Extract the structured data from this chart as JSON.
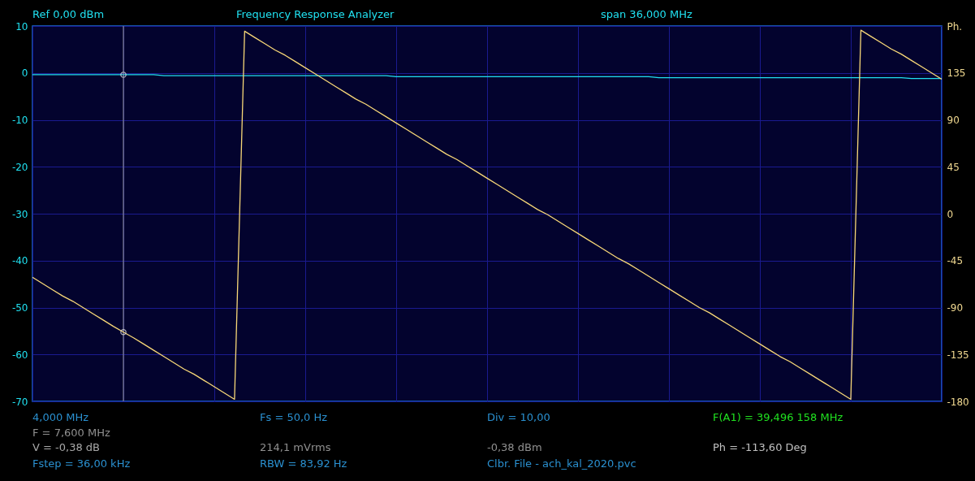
{
  "chart_data": {
    "type": "line",
    "title": "Frequency Response Analyzer",
    "categories": [
      null,
      null,
      null,
      null,
      null,
      null,
      null,
      null,
      null,
      null,
      null,
      null,
      null,
      null,
      null,
      null,
      null,
      null,
      null,
      null,
      null,
      null,
      null,
      null,
      null,
      null,
      null,
      null,
      null,
      null,
      null,
      null,
      null,
      null,
      null,
      null,
      null,
      null,
      null,
      null,
      null,
      null,
      null,
      null,
      null,
      null,
      null,
      null,
      null,
      null,
      null,
      null,
      null,
      null,
      null,
      null,
      null,
      null,
      null,
      null,
      null,
      null,
      null,
      null,
      null,
      null,
      null,
      null,
      null,
      null,
      null,
      null,
      null,
      null,
      null,
      null,
      null,
      null,
      null,
      null,
      null,
      null,
      null,
      null,
      null,
      null,
      null,
      null,
      null,
      null,
      null
    ],
    "ylim": [
      -70,
      10
    ],
    "yticks": [
      -70,
      -60,
      -50,
      -40,
      -30,
      -20,
      -10,
      0,
      10
    ],
    "y2lim": [
      -180,
      180
    ],
    "y2ticks": [
      -180,
      -135,
      -90,
      -45,
      0,
      45,
      90,
      135,
      {
        "value": 180,
        "label": "Ph."
      }
    ],
    "grid": true,
    "line_style": "solid",
    "series": [
      {
        "color": "#20e0f0",
        "values": [
          -0.38,
          -0.38,
          -0.38,
          -0.38,
          -0.38,
          -0.38,
          -0.38,
          -0.38,
          -0.38,
          -0.38,
          -0.38,
          -0.38,
          -0.38,
          -0.6,
          -0.6,
          -0.6,
          -0.6,
          -0.6,
          -0.6,
          -0.6,
          -0.6,
          -0.6,
          -0.6,
          -0.6,
          -0.6,
          -0.6,
          -0.6,
          -0.6,
          -0.6,
          -0.6,
          -0.6,
          -0.6,
          -0.6,
          -0.6,
          -0.6,
          -0.6,
          -0.8,
          -0.8,
          -0.8,
          -0.8,
          -0.8,
          -0.8,
          -0.8,
          -0.8,
          -0.8,
          -0.8,
          -0.8,
          -0.8,
          -0.8,
          -0.8,
          -0.8,
          -0.8,
          -0.8,
          -0.8,
          -0.8,
          -0.8,
          -0.8,
          -0.8,
          -0.8,
          -0.8,
          -0.8,
          -0.8,
          -1.0,
          -1.0,
          -1.0,
          -1.0,
          -1.0,
          -1.0,
          -1.0,
          -1.0,
          -1.0,
          -1.0,
          -1.0,
          -1.0,
          -1.0,
          -1.0,
          -1.0,
          -1.0,
          -1.0,
          -1.0,
          -1.0,
          -1.0,
          -1.0,
          -1.0,
          -1.0,
          -1.0,
          -1.0,
          -1.2,
          -1.2,
          -1.2,
          -1.2
        ]
      },
      {
        "color": "#f8d878",
        "axis": "y2",
        "values": [
          -61,
          -67,
          -73,
          -79,
          -84,
          -90,
          -96,
          -102,
          -108,
          -113.6,
          -119,
          -125,
          -131,
          -137,
          -143,
          -149,
          -154,
          -160,
          -166,
          -172,
          -178,
          175,
          169,
          163,
          157,
          152,
          146,
          140,
          134,
          128,
          122,
          116,
          110,
          105,
          99,
          93,
          87,
          81,
          75,
          69,
          63,
          57,
          52,
          46,
          40,
          34,
          28,
          22,
          16,
          10,
          4,
          -1,
          -7,
          -13,
          -19,
          -25,
          -31,
          -37,
          -43,
          -48,
          -54,
          -60,
          -66,
          -72,
          -78,
          -84,
          -90,
          -95,
          -101,
          -107,
          -113,
          -119,
          -125,
          -131,
          -137,
          -142,
          -148,
          -154,
          -160,
          -166,
          -172,
          -178,
          176,
          170,
          164,
          158,
          153,
          147,
          141,
          135,
          129
        ]
      },
      {
        "type": "scatter",
        "marker": "circle",
        "color": "#e8e8e8",
        "values": [
          null,
          null,
          null,
          null,
          null,
          null,
          null,
          null,
          null,
          -0.38,
          null,
          null,
          null,
          null,
          null,
          null,
          null,
          null,
          null,
          null,
          null,
          null,
          null,
          null,
          null,
          null,
          null,
          null,
          null,
          null,
          null,
          null,
          null,
          null,
          null,
          null,
          null,
          null,
          null,
          null,
          null,
          null,
          null,
          null,
          null,
          null,
          null,
          null,
          null,
          null,
          null,
          null,
          null,
          null,
          null,
          null,
          null,
          null,
          null,
          null,
          null,
          null,
          null,
          null,
          null,
          null,
          null,
          null,
          null,
          null,
          null,
          null,
          null,
          null,
          null,
          null,
          null,
          null,
          null,
          null,
          null,
          null,
          null,
          null,
          null,
          null,
          null,
          null,
          null,
          null,
          null
        ]
      },
      {
        "type": "scatter",
        "marker": "circle",
        "color": "#e8e8e8",
        "axis": "y2",
        "values": [
          null,
          null,
          null,
          null,
          null,
          null,
          null,
          null,
          null,
          -113.6,
          null,
          null,
          null,
          null,
          null,
          null,
          null,
          null,
          null,
          null,
          null,
          null,
          null,
          null,
          null,
          null,
          null,
          null,
          null,
          null,
          null,
          null,
          null,
          null,
          null,
          null,
          null,
          null,
          null,
          null,
          null,
          null,
          null,
          null,
          null,
          null,
          null,
          null,
          null,
          null,
          null,
          null,
          null,
          null,
          null,
          null,
          null,
          null,
          null,
          null,
          null,
          null,
          null,
          null,
          null,
          null,
          null,
          null,
          null,
          null,
          null,
          null,
          null,
          null,
          null,
          null,
          null,
          null,
          null,
          null,
          null,
          null,
          null,
          null,
          null,
          null,
          null,
          null,
          null,
          null,
          null
        ]
      }
    ],
    "ref_lines": [
      {
        "axis": "x",
        "label": null,
        "color": "#a0a0a0"
      }
    ],
    "annotations": [
      "4,000 MHz",
      "Ref  0,00 dBm",
      "span 36,000 MHz",
      "F = 7,600 MHz",
      "Fs = 50,0 Hz",
      "Div = 10,00",
      "F(A1) = 39,496 158 MHz",
      "V = -0,38 dB",
      "214,1 mVrms",
      "-0,38 dBm",
      "Ph = -113,60 Deg",
      "Fstep = 36,00 kHz",
      "RBW = 83,92 Hz",
      "Clbr. File - ach_kal_2020.pvc"
    ]
  }
}
